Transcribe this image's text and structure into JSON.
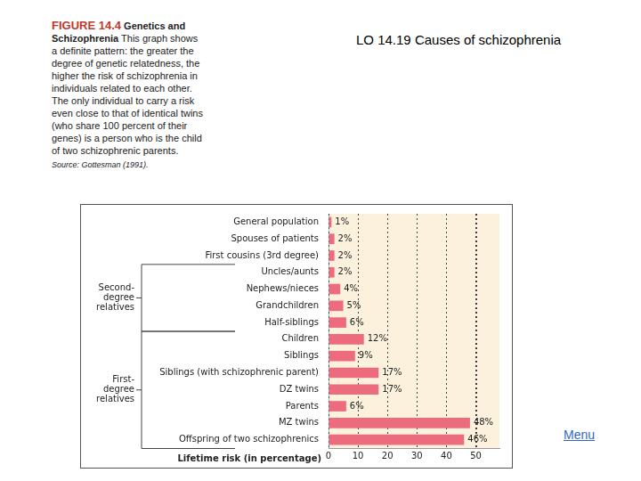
{
  "heading": "LO 14.19 Causes of schizophrenia",
  "figure": {
    "number": "FIGURE 14.4",
    "title": "Genetics and Schizophrenia",
    "caption": "This graph shows a definite pattern: the greater the degree of genetic relatedness, the higher the risk of schizophrenia in individuals related to each other. The only individual to carry a risk even close to that of identical twins (who share 100 percent of their genes) is a person who is the child of two schizophrenic parents.",
    "source": "Source: Gottesman (1991)."
  },
  "menu": "Menu",
  "chart_data": {
    "type": "bar",
    "orientation": "horizontal",
    "categories": [
      "General population",
      "Spouses of patients",
      "First cousins (3rd degree)",
      "Uncles/aunts",
      "Nephews/nieces",
      "Grandchildren",
      "Half-siblings",
      "Children",
      "Siblings",
      "Siblings (with schizophrenic parent)",
      "DZ twins",
      "Parents",
      "MZ twins",
      "Offspring of two schizophrenics"
    ],
    "values": [
      1,
      2,
      2,
      2,
      4,
      5,
      6,
      12,
      9,
      17,
      17,
      6,
      48,
      46
    ],
    "value_labels": [
      "1%",
      "2%",
      "2%",
      "2%",
      "4%",
      "5%",
      "6%",
      "12%",
      "9%",
      "17%",
      "17%",
      "6%",
      "48%",
      "46%"
    ],
    "data_labels": true,
    "color": "#ec6b7c",
    "x_label": "Lifetime risk (in percentage)",
    "xlim": [
      0,
      58
    ],
    "xticks": [
      0,
      10,
      20,
      30,
      40,
      50
    ],
    "grid": true,
    "annotations": [
      {
        "text": [
          "Second-",
          "degree",
          "relatives"
        ],
        "from": "Uncles/aunts",
        "to": "Half-siblings"
      },
      {
        "text": [
          "First-",
          "degree",
          "relatives"
        ],
        "from": "Children",
        "to": "Offspring of two schizophrenics"
      }
    ]
  }
}
